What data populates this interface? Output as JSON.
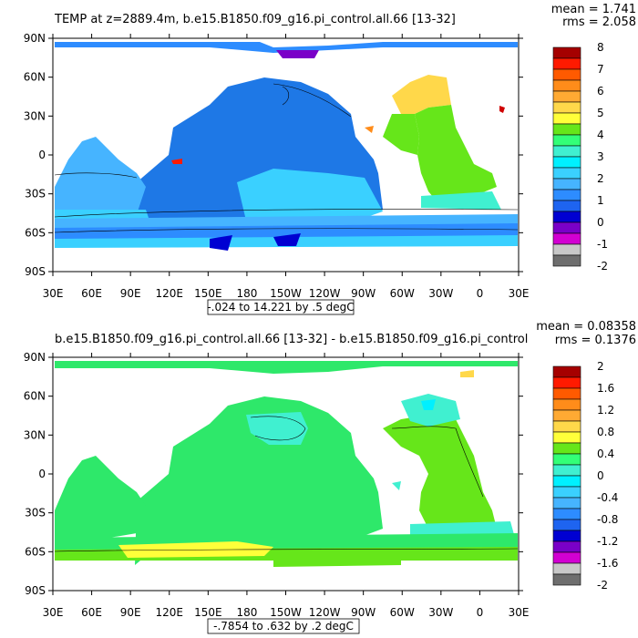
{
  "panels": [
    {
      "title": "TEMP at z=2889.4m, b.e15.B1850.f09_g16.pi_control.all.66 [13-32]",
      "mean": "mean = 1.741",
      "rms": "rms = 2.058",
      "range": "-.024 to 14.221 by .5 degC",
      "colorbar_labels": [
        "8",
        "7",
        "6",
        "5",
        "4",
        "3",
        "2",
        "1",
        "0",
        "-1",
        "-2"
      ],
      "colorbar_colors": [
        "#a50000",
        "#ff1a00",
        "#ff5a00",
        "#ff8c1a",
        "#ffaa33",
        "#ffd84a",
        "#ffff3a",
        "#66e61a",
        "#33ff77",
        "#40f0d0",
        "#00f0ff",
        "#3ad0ff",
        "#46b4ff",
        "#2d8cff",
        "#1e64f0",
        "#0000d2",
        "#7a00c8",
        "#d200d2",
        "#c8c8c8",
        "#6e6e6e"
      ],
      "ocean_color": "#1e78e6"
    },
    {
      "title": "b.e15.B1850.f09_g16.pi_control.all.66 [13-32] - b.e15.B1850.f09_g16.pi_control",
      "mean": "mean = 0.08358",
      "rms": "rms = 0.1376",
      "range": "-.7854 to .632 by .2 degC",
      "colorbar_labels": [
        "2",
        "1.6",
        "1.2",
        "0.8",
        "0.4",
        "0",
        "-0.4",
        "-0.8",
        "-1.2",
        "-1.6",
        "-2"
      ],
      "colorbar_colors": [
        "#a50000",
        "#ff1a00",
        "#ff5a00",
        "#ff8c1a",
        "#ffaa33",
        "#ffd84a",
        "#ffff3a",
        "#66e61a",
        "#33ff77",
        "#40f0d0",
        "#00f0ff",
        "#3ad0ff",
        "#46b4ff",
        "#2d8cff",
        "#1e64f0",
        "#0000d2",
        "#7a00c8",
        "#d200d2",
        "#c8c8c8",
        "#6e6e6e"
      ],
      "ocean_color": "#2ee86a"
    }
  ],
  "lat_labels": [
    "90N",
    "60N",
    "30N",
    "0",
    "30S",
    "60S",
    "90S"
  ],
  "lon_labels": [
    "30E",
    "60E",
    "90E",
    "120E",
    "150E",
    "180",
    "150W",
    "120W",
    "90W",
    "60W",
    "30W",
    "0",
    "30E"
  ]
}
